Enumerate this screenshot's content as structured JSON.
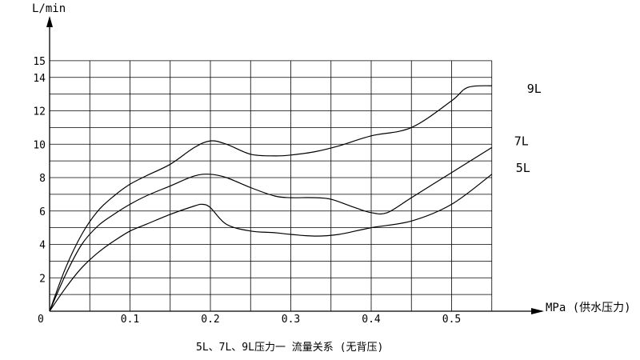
{
  "chart_data": {
    "type": "line",
    "title": "5L、7L、9L压力一 流量关系 (无背压)",
    "ylabel": "L/min",
    "xlabel": "MPa (供水压力)",
    "xlim": [
      0,
      0.55
    ],
    "ylim": [
      0,
      15
    ],
    "x_ticks": [
      {
        "value": 0,
        "label": "0"
      },
      {
        "value": 0.1,
        "label": "0.1"
      },
      {
        "value": 0.2,
        "label": "0.2"
      },
      {
        "value": 0.3,
        "label": "0.3"
      },
      {
        "value": 0.4,
        "label": "0.4"
      },
      {
        "value": 0.5,
        "label": "0.5"
      }
    ],
    "y_ticks": [
      {
        "value": 2,
        "label": "2"
      },
      {
        "value": 4,
        "label": "4"
      },
      {
        "value": 6,
        "label": "6"
      },
      {
        "value": 8,
        "label": "8"
      },
      {
        "value": 10,
        "label": "10"
      },
      {
        "value": 12,
        "label": "12"
      },
      {
        "value": 14,
        "label": "14"
      },
      {
        "value": 15,
        "label": "15"
      }
    ],
    "grid": true,
    "series": [
      {
        "name": "9L",
        "x": [
          0,
          0.02,
          0.04,
          0.06,
          0.08,
          0.1,
          0.12,
          0.15,
          0.18,
          0.2,
          0.22,
          0.25,
          0.28,
          0.3,
          0.33,
          0.36,
          0.4,
          0.45,
          0.5,
          0.52,
          0.55
        ],
        "y": [
          0,
          2.6,
          4.6,
          6.0,
          6.9,
          7.6,
          8.1,
          8.8,
          9.8,
          10.2,
          10.0,
          9.4,
          9.3,
          9.35,
          9.55,
          9.9,
          10.5,
          11.0,
          12.6,
          13.4,
          13.5
        ]
      },
      {
        "name": "7L",
        "x": [
          0,
          0.02,
          0.04,
          0.06,
          0.08,
          0.1,
          0.12,
          0.15,
          0.18,
          0.2,
          0.22,
          0.25,
          0.28,
          0.3,
          0.33,
          0.35,
          0.38,
          0.4,
          0.42,
          0.45,
          0.5,
          0.55
        ],
        "y": [
          0,
          2.2,
          4.0,
          5.1,
          5.8,
          6.4,
          6.9,
          7.5,
          8.1,
          8.2,
          8.0,
          7.4,
          6.9,
          6.8,
          6.8,
          6.7,
          6.2,
          5.9,
          5.9,
          6.8,
          8.3,
          9.8
        ]
      },
      {
        "name": "5L",
        "x": [
          0,
          0.02,
          0.04,
          0.06,
          0.08,
          0.1,
          0.12,
          0.15,
          0.18,
          0.19,
          0.2,
          0.22,
          0.25,
          0.28,
          0.3,
          0.33,
          0.36,
          0.4,
          0.45,
          0.5,
          0.55
        ],
        "y": [
          0,
          1.4,
          2.6,
          3.5,
          4.2,
          4.8,
          5.2,
          5.8,
          6.3,
          6.4,
          6.2,
          5.2,
          4.8,
          4.7,
          4.6,
          4.5,
          4.6,
          5.0,
          5.4,
          6.4,
          8.2
        ]
      }
    ]
  }
}
